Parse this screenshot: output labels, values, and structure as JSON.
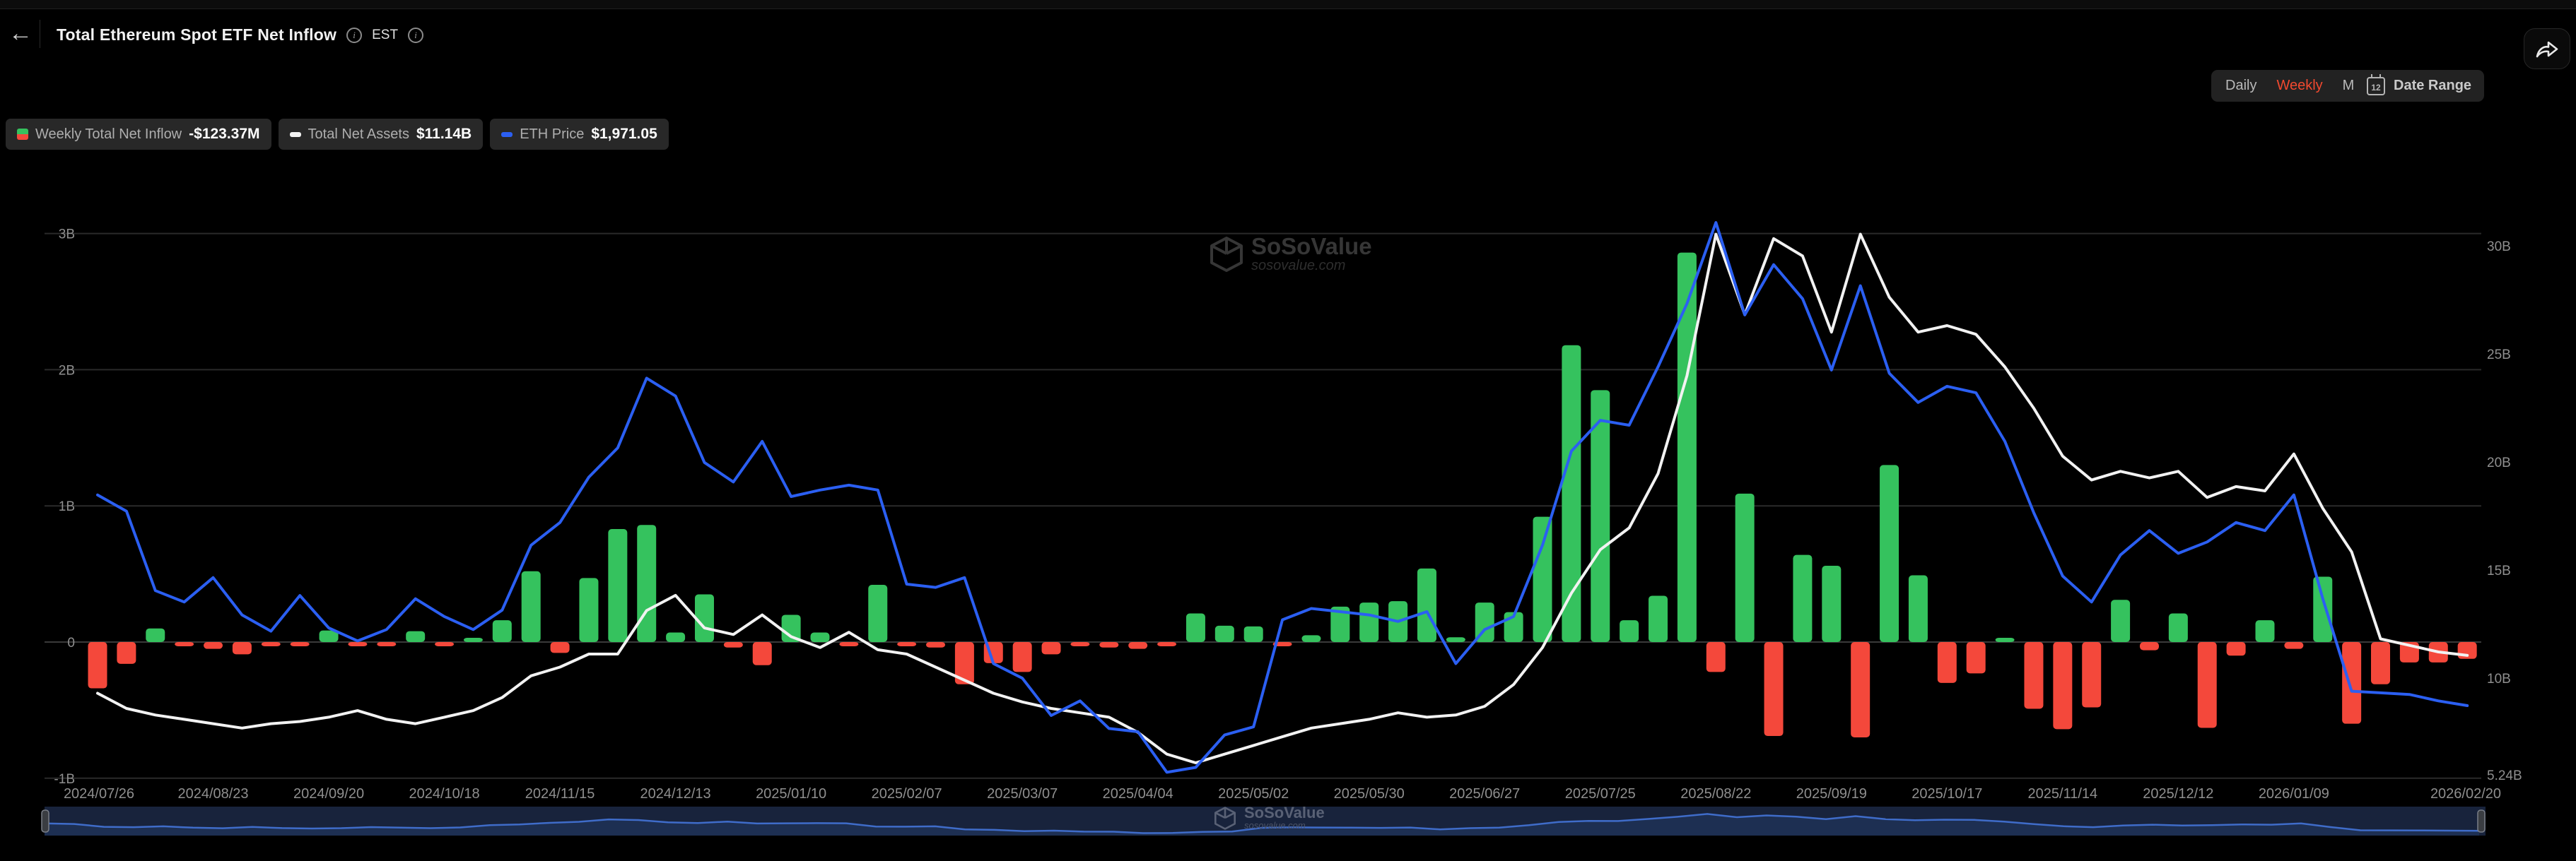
{
  "header": {
    "back": "←",
    "title": "Total Ethereum Spot ETF Net Inflow",
    "est": "EST",
    "info": "i"
  },
  "controls": {
    "tabs": [
      {
        "label": "Daily"
      },
      {
        "label": "Weekly"
      },
      {
        "label": "Monthly"
      }
    ],
    "active_tab": "Weekly",
    "date_range_label": "Date Range",
    "calendar_day": "12"
  },
  "legend": {
    "items": [
      {
        "label": "Weekly Total Net Inflow",
        "value": "-$123.37M",
        "icon": "bar-green-red-swatch"
      },
      {
        "label": "Total Net Assets",
        "value": "$11.14B",
        "icon": "white-dash-swatch"
      },
      {
        "label": "ETH Price",
        "value": "$1,971.05",
        "icon": "blue-dash-swatch"
      }
    ]
  },
  "watermark": {
    "name": "SoSoValue",
    "domain": "sosovalue.com"
  },
  "colors": {
    "green": "#35c25e",
    "red": "#f4483b",
    "white_line": "#f2f2f2",
    "blue_line": "#2b5ff2",
    "grid": "#2a2a2a",
    "zero_line": "#3a3a3a",
    "axis_text": "#8f8f8f",
    "active_tab": "#f1492f",
    "nav_bg": "#18233c",
    "nav_fill": "#1d2f52",
    "nav_line": "#3f6cc9",
    "nav_handle": "#3a3d42",
    "nav_handle_border": "#7a7f88"
  },
  "chart_data": {
    "type": "mixed",
    "title": "Total Ethereum Spot ETF Net Inflow (Weekly)",
    "x_unit": "week",
    "x_start": "2024/07/26",
    "x_end": "2026/02/20",
    "num_points": 83,
    "x_tick_labels": [
      [
        0,
        "2024/07/26"
      ],
      [
        4,
        "2024/08/23"
      ],
      [
        8,
        "2024/09/20"
      ],
      [
        12,
        "2024/10/18"
      ],
      [
        16,
        "2024/11/15"
      ],
      [
        20,
        "2024/12/13"
      ],
      [
        24,
        "2025/01/10"
      ],
      [
        28,
        "2025/02/07"
      ],
      [
        32,
        "2025/03/07"
      ],
      [
        36,
        "2025/04/04"
      ],
      [
        40,
        "2025/05/02"
      ],
      [
        44,
        "2025/05/30"
      ],
      [
        48,
        "2025/06/27"
      ],
      [
        52,
        "2025/07/25"
      ],
      [
        56,
        "2025/08/22"
      ],
      [
        60,
        "2025/09/19"
      ],
      [
        64,
        "2025/10/17"
      ],
      [
        68,
        "2025/11/14"
      ],
      [
        72,
        "2025/12/12"
      ],
      [
        76,
        "2026/01/09"
      ],
      [
        82,
        "2026/02/20"
      ]
    ],
    "y_axis_left": {
      "labels": [
        "3B",
        "2B",
        "1B",
        "0",
        "-1B"
      ],
      "values": [
        3,
        2,
        1,
        0,
        -1
      ],
      "unit": "USD"
    },
    "y_axis_right": {
      "labels": [
        "30B",
        "25B",
        "20B",
        "15B",
        "10B",
        "5.24B"
      ],
      "values": [
        30,
        25,
        20,
        15,
        10,
        5.24
      ],
      "unit": "USD"
    },
    "series": [
      {
        "name": "Weekly Total Net Inflow",
        "type": "bar",
        "axis": "left",
        "unit": "billion USD",
        "values": [
          -0.34,
          -0.16,
          0.1,
          -0.02,
          -0.05,
          -0.09,
          -0.02,
          -0.02,
          0.085,
          -0.03,
          -0.02,
          0.08,
          -0.02,
          0.01,
          0.16,
          0.52,
          -0.08,
          0.47,
          0.83,
          0.86,
          0.07,
          0.35,
          -0.04,
          -0.17,
          0.2,
          0.07,
          -0.03,
          0.42,
          -0.02,
          -0.04,
          -0.31,
          -0.155,
          -0.22,
          -0.09,
          -0.03,
          -0.04,
          -0.05,
          -0.02,
          0.21,
          0.12,
          0.115,
          -0.03,
          0.05,
          0.26,
          0.29,
          0.3,
          0.54,
          0.035,
          0.29,
          0.22,
          0.92,
          2.18,
          1.85,
          0.16,
          0.34,
          2.86,
          -0.22,
          1.09,
          -0.69,
          0.64,
          0.56,
          -0.7,
          1.3,
          0.49,
          -0.3,
          -0.23,
          0.02,
          -0.49,
          -0.64,
          -0.48,
          0.31,
          -0.06,
          0.21,
          -0.63,
          -0.1,
          0.16,
          -0.05,
          0.48,
          -0.6,
          -0.31,
          -0.15,
          -0.15,
          -0.12337
        ]
      },
      {
        "name": "Total Net Assets",
        "type": "line",
        "axis": "right",
        "unit": "billion USD",
        "values": [
          9.4,
          8.7,
          8.4,
          8.2,
          8.0,
          7.8,
          8.0,
          8.1,
          8.3,
          8.6,
          8.2,
          8.0,
          8.3,
          8.6,
          9.2,
          10.2,
          10.6,
          11.2,
          11.2,
          13.2,
          13.9,
          12.4,
          12.1,
          13.0,
          12.0,
          11.5,
          12.2,
          11.4,
          11.2,
          10.6,
          10.0,
          9.4,
          9.0,
          8.7,
          8.5,
          8.3,
          7.6,
          6.6,
          6.2,
          6.6,
          7.0,
          7.4,
          7.8,
          8.0,
          8.2,
          8.5,
          8.3,
          8.4,
          8.8,
          9.8,
          11.5,
          14.0,
          16.0,
          17.0,
          19.5,
          24.0,
          30.5,
          26.8,
          30.3,
          29.5,
          26.0,
          30.5,
          27.6,
          26.0,
          26.3,
          25.9,
          24.4,
          22.5,
          20.3,
          19.2,
          19.6,
          19.3,
          19.6,
          18.4,
          18.9,
          18.7,
          20.4,
          17.9,
          15.9,
          11.9,
          11.6,
          11.3,
          11.14
        ]
      },
      {
        "name": "ETH Price",
        "type": "line",
        "axis": "hidden",
        "unit": "USD",
        "values": [
          3270,
          3170,
          2680,
          2610,
          2760,
          2530,
          2430,
          2650,
          2450,
          2370,
          2440,
          2630,
          2520,
          2440,
          2560,
          2960,
          3100,
          3380,
          3560,
          3990,
          3880,
          3470,
          3350,
          3600,
          3260,
          3300,
          3330,
          3300,
          2720,
          2700,
          2760,
          2230,
          2140,
          1910,
          2000,
          1830,
          1810,
          1560,
          1590,
          1790,
          1840,
          2500,
          2570,
          2550,
          2530,
          2490,
          2550,
          2230,
          2440,
          2520,
          2960,
          3540,
          3730,
          3700,
          4060,
          4450,
          4950,
          4380,
          4690,
          4480,
          4040,
          4560,
          4020,
          3840,
          3940,
          3900,
          3600,
          3160,
          2770,
          2610,
          2900,
          3050,
          2910,
          2980,
          3100,
          3050,
          3270,
          2630,
          2060,
          2050,
          2040,
          2000,
          1971
        ]
      }
    ],
    "legend_position": "top-left",
    "grid": true,
    "navigator": {
      "present": true,
      "series": "ETH Price"
    }
  }
}
